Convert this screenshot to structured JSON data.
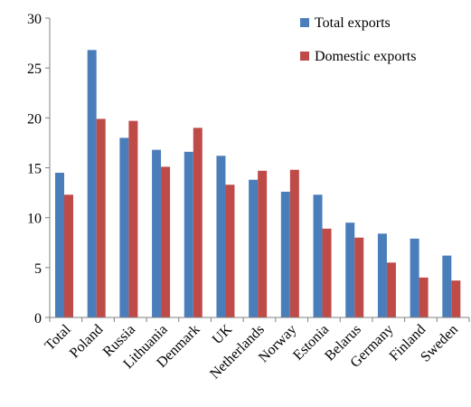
{
  "chart_data": {
    "type": "bar",
    "categories": [
      "Total",
      "Poland",
      "Russia",
      "Lithuania",
      "Denmark",
      "UK",
      "Netherlands",
      "Norway",
      "Estonia",
      "Belarus",
      "Germany",
      "Finland",
      "Sweden"
    ],
    "series": [
      {
        "name": "Total exports",
        "color": "#4a7ebb",
        "values": [
          14.5,
          26.8,
          18.0,
          16.8,
          16.6,
          16.2,
          13.8,
          12.6,
          12.3,
          9.5,
          8.4,
          7.9,
          6.2
        ]
      },
      {
        "name": "Domestic exports",
        "color": "#be4b48",
        "values": [
          12.3,
          19.9,
          19.7,
          15.1,
          19.0,
          13.3,
          14.7,
          14.8,
          8.9,
          8.0,
          5.5,
          4.0,
          3.7
        ]
      }
    ],
    "ylim": [
      0,
      30
    ],
    "yticks": [
      0,
      5,
      10,
      15,
      20,
      25,
      30
    ],
    "grid": false,
    "legend_position": "top-right"
  }
}
